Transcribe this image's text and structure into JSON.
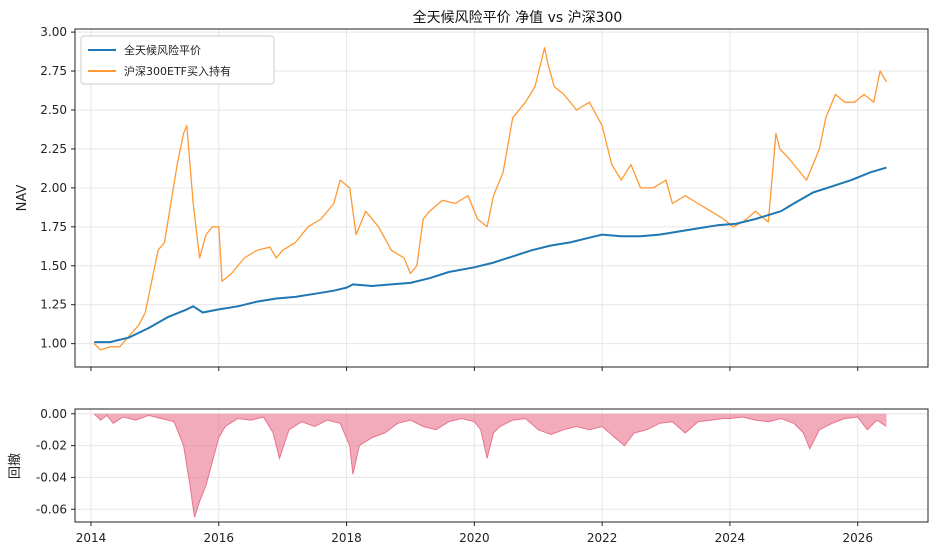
{
  "chart_data": [
    {
      "type": "line",
      "title": "全天候风险平价 净值 vs 沪深300",
      "xlabel": "",
      "ylabel": "NAV",
      "xlim": [
        2013.75,
        2027.1
      ],
      "ylim": [
        0.85,
        3.02
      ],
      "x_ticks": [
        2014,
        2016,
        2018,
        2020,
        2022,
        2024,
        2026
      ],
      "y_ticks": [
        1.0,
        1.25,
        1.5,
        1.75,
        2.0,
        2.25,
        2.5,
        2.75,
        3.0
      ],
      "y_tick_labels": [
        "1.00",
        "1.25",
        "1.50",
        "1.75",
        "2.00",
        "2.25",
        "2.50",
        "2.75",
        "3.00"
      ],
      "grid": true,
      "legend": "top-left",
      "series": [
        {
          "name": "全天候风险平价",
          "color": "#1f77b4",
          "x": [
            2014.05,
            2014.3,
            2014.6,
            2014.9,
            2015.2,
            2015.5,
            2015.6,
            2015.75,
            2016.0,
            2016.3,
            2016.6,
            2016.9,
            2017.2,
            2017.5,
            2017.8,
            2018.0,
            2018.1,
            2018.4,
            2018.7,
            2019.0,
            2019.3,
            2019.6,
            2020.0,
            2020.3,
            2020.6,
            2020.9,
            2021.2,
            2021.5,
            2021.8,
            2022.0,
            2022.3,
            2022.6,
            2022.9,
            2023.2,
            2023.5,
            2023.8,
            2024.1,
            2024.4,
            2024.8,
            2025.0,
            2025.3,
            2025.6,
            2025.9,
            2026.2,
            2026.45
          ],
          "values": [
            1.01,
            1.01,
            1.04,
            1.1,
            1.17,
            1.22,
            1.24,
            1.2,
            1.22,
            1.24,
            1.27,
            1.29,
            1.3,
            1.32,
            1.34,
            1.36,
            1.38,
            1.37,
            1.38,
            1.39,
            1.42,
            1.46,
            1.49,
            1.52,
            1.56,
            1.6,
            1.63,
            1.65,
            1.68,
            1.7,
            1.69,
            1.69,
            1.7,
            1.72,
            1.74,
            1.76,
            1.77,
            1.8,
            1.85,
            1.9,
            1.97,
            2.01,
            2.05,
            2.1,
            2.13
          ]
        },
        {
          "name": "沪深300ETF买入持有",
          "color": "#ff9933",
          "x": [
            2014.05,
            2014.15,
            2014.3,
            2014.45,
            2014.6,
            2014.75,
            2014.85,
            2014.95,
            2015.05,
            2015.15,
            2015.25,
            2015.35,
            2015.45,
            2015.5,
            2015.6,
            2015.7,
            2015.8,
            2015.9,
            2016.0,
            2016.05,
            2016.2,
            2016.4,
            2016.6,
            2016.8,
            2016.9,
            2017.0,
            2017.2,
            2017.4,
            2017.6,
            2017.8,
            2017.9,
            2018.05,
            2018.15,
            2018.3,
            2018.5,
            2018.7,
            2018.9,
            2019.0,
            2019.1,
            2019.2,
            2019.3,
            2019.5,
            2019.7,
            2019.9,
            2020.05,
            2020.2,
            2020.3,
            2020.45,
            2020.6,
            2020.8,
            2020.95,
            2021.1,
            2021.15,
            2021.25,
            2021.4,
            2021.6,
            2021.8,
            2022.0,
            2022.15,
            2022.3,
            2022.45,
            2022.6,
            2022.8,
            2023.0,
            2023.1,
            2023.3,
            2023.5,
            2023.7,
            2023.9,
            2024.05,
            2024.2,
            2024.4,
            2024.6,
            2024.72,
            2024.78,
            2024.9,
            2025.0,
            2025.2,
            2025.4,
            2025.5,
            2025.65,
            2025.8,
            2025.95,
            2026.1,
            2026.25,
            2026.35,
            2026.45
          ],
          "values": [
            1.0,
            0.96,
            0.98,
            0.98,
            1.05,
            1.12,
            1.2,
            1.4,
            1.6,
            1.65,
            1.9,
            2.15,
            2.35,
            2.4,
            1.9,
            1.55,
            1.7,
            1.75,
            1.75,
            1.4,
            1.45,
            1.55,
            1.6,
            1.62,
            1.55,
            1.6,
            1.65,
            1.75,
            1.8,
            1.9,
            2.05,
            2.0,
            1.7,
            1.85,
            1.75,
            1.6,
            1.55,
            1.45,
            1.5,
            1.8,
            1.85,
            1.92,
            1.9,
            1.95,
            1.8,
            1.75,
            1.95,
            2.1,
            2.45,
            2.55,
            2.65,
            2.9,
            2.8,
            2.65,
            2.6,
            2.5,
            2.55,
            2.4,
            2.15,
            2.05,
            2.15,
            2.0,
            2.0,
            2.05,
            1.9,
            1.95,
            1.9,
            1.85,
            1.8,
            1.75,
            1.78,
            1.85,
            1.78,
            2.35,
            2.25,
            2.2,
            2.15,
            2.05,
            2.25,
            2.45,
            2.6,
            2.55,
            2.55,
            2.6,
            2.55,
            2.75,
            2.68
          ]
        }
      ]
    },
    {
      "type": "area",
      "title": "",
      "xlabel": "",
      "ylabel": "回撤",
      "xlim": [
        2013.75,
        2027.1
      ],
      "ylim": [
        -0.068,
        0.003
      ],
      "x_ticks": [
        2014,
        2016,
        2018,
        2020,
        2022,
        2024,
        2026
      ],
      "x_tick_labels": [
        "2014",
        "2016",
        "2018",
        "2020",
        "2022",
        "2024",
        "2026"
      ],
      "y_ticks": [
        0.0,
        -0.02,
        -0.04,
        -0.06
      ],
      "y_tick_labels": [
        "0.00",
        "-0.02",
        "-0.04",
        "-0.06"
      ],
      "grid": true,
      "color": "#e8738c",
      "series": [
        {
          "x": [
            2014.05,
            2014.15,
            2014.25,
            2014.35,
            2014.5,
            2014.7,
            2014.9,
            2015.1,
            2015.3,
            2015.45,
            2015.55,
            2015.62,
            2015.7,
            2015.8,
            2015.9,
            2016.0,
            2016.1,
            2016.3,
            2016.5,
            2016.7,
            2016.85,
            2016.95,
            2017.1,
            2017.3,
            2017.5,
            2017.7,
            2017.9,
            2018.05,
            2018.1,
            2018.2,
            2018.4,
            2018.6,
            2018.8,
            2019.0,
            2019.2,
            2019.4,
            2019.6,
            2019.8,
            2020.0,
            2020.1,
            2020.2,
            2020.3,
            2020.4,
            2020.6,
            2020.8,
            2021.0,
            2021.2,
            2021.4,
            2021.6,
            2021.8,
            2022.0,
            2022.2,
            2022.35,
            2022.5,
            2022.7,
            2022.9,
            2023.1,
            2023.3,
            2023.5,
            2023.7,
            2023.9,
            2024.0,
            2024.2,
            2024.4,
            2024.6,
            2024.8,
            2025.0,
            2025.15,
            2025.25,
            2025.4,
            2025.6,
            2025.8,
            2026.0,
            2026.15,
            2026.3,
            2026.45
          ],
          "values": [
            0.0,
            -0.004,
            -0.001,
            -0.006,
            -0.002,
            -0.004,
            -0.001,
            -0.003,
            -0.005,
            -0.02,
            -0.045,
            -0.065,
            -0.055,
            -0.045,
            -0.03,
            -0.015,
            -0.008,
            -0.003,
            -0.004,
            -0.002,
            -0.012,
            -0.028,
            -0.01,
            -0.005,
            -0.008,
            -0.004,
            -0.006,
            -0.02,
            -0.038,
            -0.02,
            -0.015,
            -0.012,
            -0.006,
            -0.004,
            -0.008,
            -0.01,
            -0.005,
            -0.003,
            -0.005,
            -0.01,
            -0.028,
            -0.012,
            -0.008,
            -0.004,
            -0.003,
            -0.01,
            -0.013,
            -0.01,
            -0.008,
            -0.01,
            -0.008,
            -0.015,
            -0.02,
            -0.012,
            -0.01,
            -0.006,
            -0.005,
            -0.012,
            -0.005,
            -0.004,
            -0.003,
            -0.003,
            -0.002,
            -0.004,
            -0.005,
            -0.003,
            -0.006,
            -0.012,
            -0.022,
            -0.01,
            -0.006,
            -0.003,
            -0.002,
            -0.01,
            -0.004,
            -0.008
          ]
        }
      ]
    }
  ]
}
